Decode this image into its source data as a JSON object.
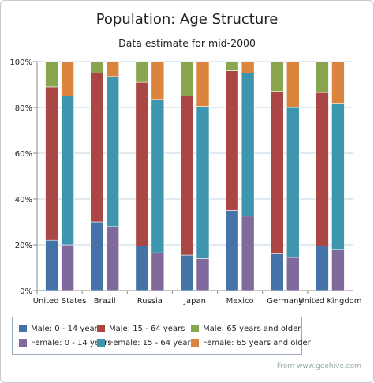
{
  "chart_data": {
    "type": "bar",
    "stacked": true,
    "percent_stacked": true,
    "title": "Population: Age Structure",
    "subtitle": "Data estimate for mid-2000",
    "categories": [
      "United States",
      "Brazil",
      "Russia",
      "Japan",
      "Mexico",
      "Germany",
      "United Kingdom"
    ],
    "y_ticks": [
      "0%",
      "20%",
      "40%",
      "60%",
      "80%",
      "100%"
    ],
    "ylim": [
      0,
      100
    ],
    "grid": true,
    "legend_position": "bottom",
    "stacks": [
      {
        "stack": "Male",
        "series": [
          {
            "name": "Male: 0 - 14 years",
            "color": "#4572a7",
            "values": [
              22,
              30,
              19.5,
              15.5,
              35,
              16,
              19.5
            ]
          },
          {
            "name": "Male: 15 - 64 years",
            "color": "#aa4643",
            "values": [
              67,
              65,
              71.5,
              69.5,
              61,
              71,
              67
            ]
          },
          {
            "name": "Male: 65 years and older",
            "color": "#89a54e",
            "values": [
              11,
              5,
              9,
              15,
              4,
              13,
              13.5
            ]
          }
        ]
      },
      {
        "stack": "Female",
        "series": [
          {
            "name": "Female: 0 - 14 years",
            "color": "#80699b",
            "values": [
              20,
              28,
              16.5,
              14,
              32.5,
              14.5,
              18
            ]
          },
          {
            "name": "Female: 15 - 64 years",
            "color": "#3d96ae",
            "values": [
              65,
              65.5,
              67,
              66.5,
              62.5,
              65.5,
              63.5
            ]
          },
          {
            "name": "Female: 65 years and older",
            "color": "#db843d",
            "values": [
              15,
              6.5,
              16.5,
              19.5,
              5,
              20,
              18.5
            ]
          }
        ]
      }
    ]
  },
  "credit": "From www.geohive.com"
}
